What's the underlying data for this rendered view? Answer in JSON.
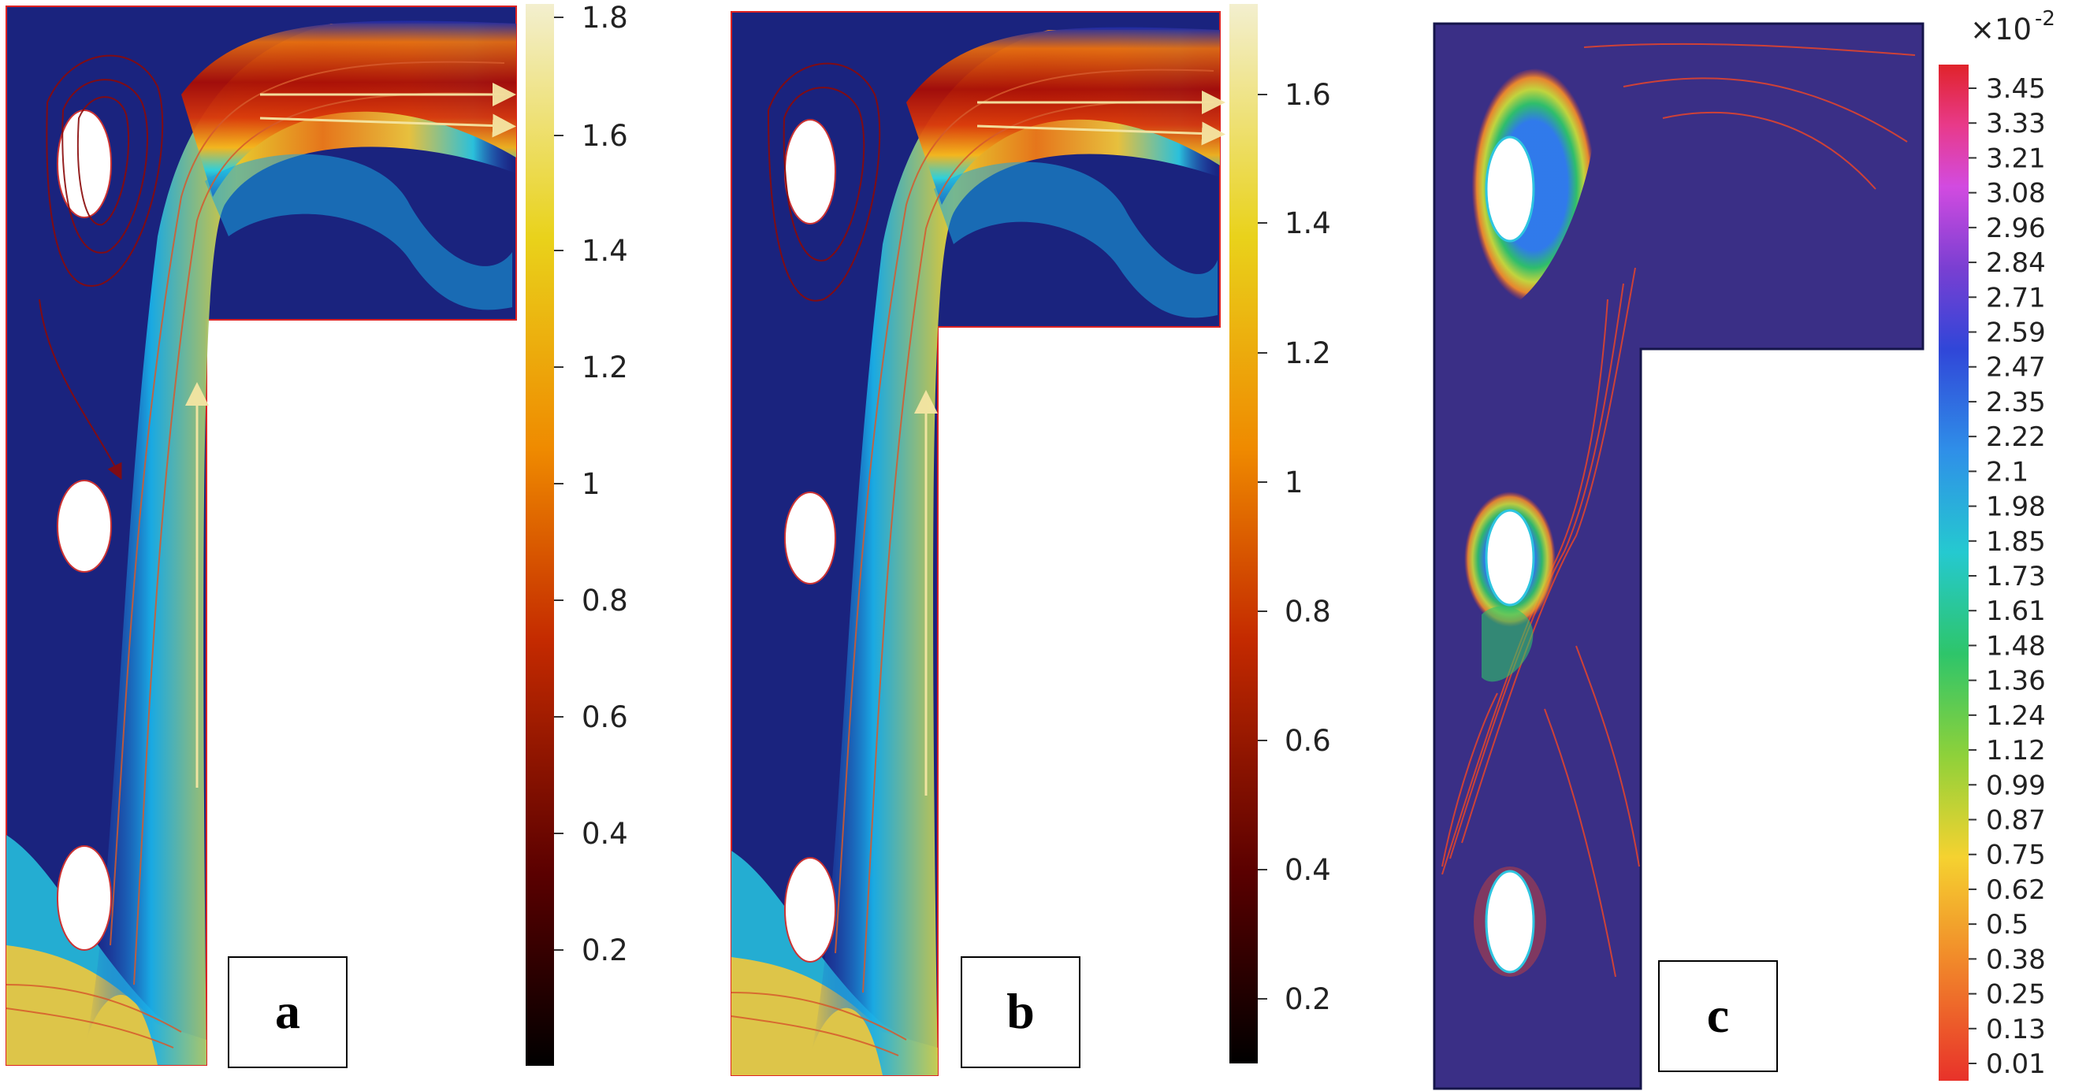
{
  "figure": {
    "panels": [
      {
        "id": "a",
        "label": "a",
        "colorbar_ticks": [
          "1.8",
          "1.6",
          "1.4",
          "1.2",
          "1",
          "0.8",
          "0.6",
          "0.4",
          "0.2"
        ]
      },
      {
        "id": "b",
        "label": "b",
        "colorbar_ticks": [
          "1.6",
          "1.4",
          "1.2",
          "1",
          "0.8",
          "0.6",
          "0.4",
          "0.2"
        ]
      },
      {
        "id": "c",
        "label": "c",
        "colorbar_multiplier": "×10",
        "colorbar_exponent": "-2",
        "colorbar_ticks": [
          "3.45",
          "3.33",
          "3.21",
          "3.08",
          "2.96",
          "2.84",
          "2.71",
          "2.59",
          "2.47",
          "2.35",
          "2.22",
          "2.1",
          "1.98",
          "1.85",
          "1.73",
          "1.61",
          "1.48",
          "1.36",
          "1.24",
          "1.12",
          "0.99",
          "0.87",
          "0.75",
          "0.62",
          "0.5",
          "0.38",
          "0.25",
          "0.13",
          "0.01"
        ]
      }
    ]
  },
  "colors": {
    "field_background": "#1a237e",
    "contour_background": "#3a2f86",
    "contour_line": "#e8452a",
    "streamline": "#d65a2c",
    "arrow": "#f5e6a3"
  }
}
